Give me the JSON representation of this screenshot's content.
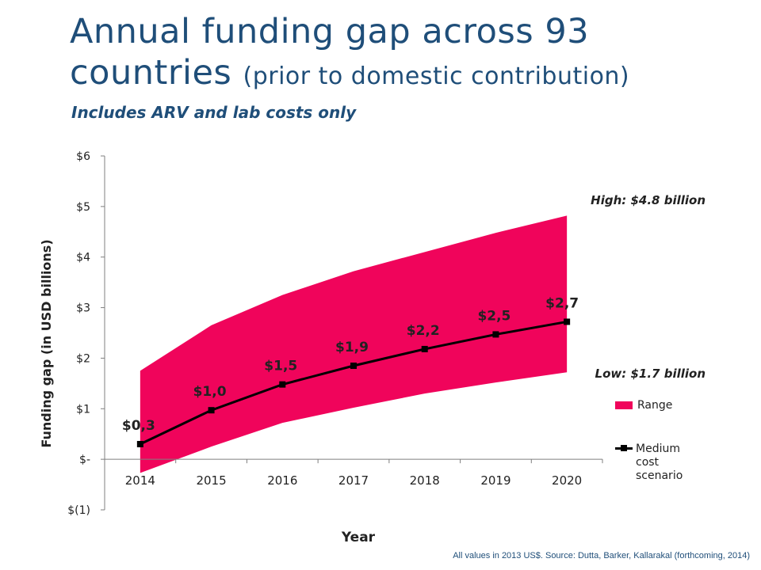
{
  "title": {
    "main": "Annual funding gap across 93 countries",
    "parenthetical": "(prior to domestic contribution)",
    "subtitle": "Includes ARV and lab costs only"
  },
  "footnote": "All values in 2013 US$.  Source: Dutta, Barker, Kallarakal (forthcoming, 2014)",
  "colors": {
    "range": "#f0045b",
    "line": "#000000",
    "title": "#1f4e79"
  },
  "chart_data": {
    "type": "area",
    "title": "",
    "xlabel": "Year",
    "ylabel": "Funding gap (in USD billions)",
    "x": [
      "2014",
      "2015",
      "2016",
      "2017",
      "2018",
      "2019",
      "2020"
    ],
    "ylim": [
      -1,
      6
    ],
    "y_ticks": [
      {
        "value": 6,
        "label": "$6"
      },
      {
        "value": 5,
        "label": "$5"
      },
      {
        "value": 4,
        "label": "$4"
      },
      {
        "value": 3,
        "label": "$3"
      },
      {
        "value": 2,
        "label": "$2"
      },
      {
        "value": 1,
        "label": "$1"
      },
      {
        "value": 0,
        "label": "$-"
      },
      {
        "value": -1,
        "label": "$(1)"
      }
    ],
    "grid": false,
    "legend_position": "right",
    "series": [
      {
        "name": "Range",
        "type": "area",
        "high": [
          1.75,
          2.65,
          3.25,
          3.72,
          4.1,
          4.48,
          4.82
        ],
        "low": [
          -0.27,
          0.25,
          0.72,
          1.02,
          1.3,
          1.52,
          1.72
        ]
      },
      {
        "name": "Medium cost scenario",
        "type": "line",
        "values": [
          0.3,
          0.97,
          1.48,
          1.85,
          2.18,
          2.47,
          2.72
        ],
        "labels": [
          "$0,3",
          "$1,0",
          "$1,5",
          "$1,9",
          "$2,2",
          "$2,5",
          "$2,7"
        ]
      }
    ],
    "annotations": {
      "high": "High: $4.8 billion",
      "low": "Low: $1.7 billion"
    }
  }
}
